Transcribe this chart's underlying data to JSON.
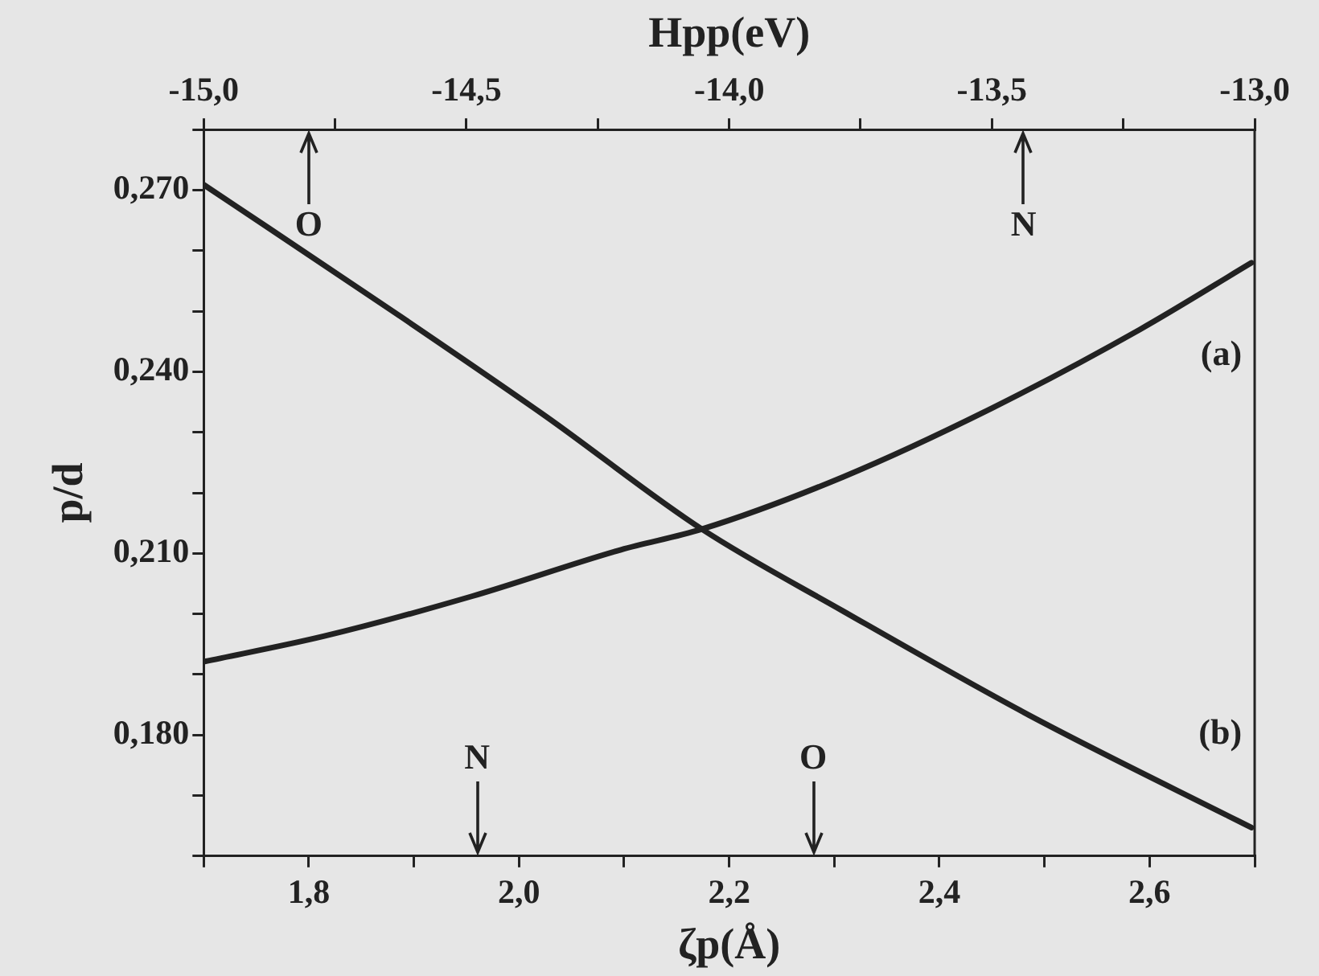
{
  "chart_data": {
    "type": "line",
    "xlabel": "ζp(Å)",
    "ylabel": "p/d",
    "x2label": "Hpp(eV)",
    "xlim": [
      1.7,
      2.7
    ],
    "ylim": [
      0.16,
      0.28
    ],
    "x2lim": [
      -15.0,
      -13.0
    ],
    "xticks": [
      {
        "value": 1.7,
        "label": null
      },
      {
        "value": 1.8,
        "label": "1,8"
      },
      {
        "value": 1.9,
        "label": null
      },
      {
        "value": 2.0,
        "label": "2,0"
      },
      {
        "value": 2.1,
        "label": null
      },
      {
        "value": 2.2,
        "label": "2,2"
      },
      {
        "value": 2.3,
        "label": null
      },
      {
        "value": 2.4,
        "label": "2,4"
      },
      {
        "value": 2.5,
        "label": null
      },
      {
        "value": 2.6,
        "label": "2,6"
      },
      {
        "value": 2.7,
        "label": null
      }
    ],
    "x2ticks": [
      {
        "value": -15.0,
        "label": "-15,0"
      },
      {
        "value": -14.75,
        "label": null
      },
      {
        "value": -14.5,
        "label": "-14,5"
      },
      {
        "value": -14.25,
        "label": null
      },
      {
        "value": -14.0,
        "label": "-14,0"
      },
      {
        "value": -13.75,
        "label": null
      },
      {
        "value": -13.5,
        "label": "-13,5"
      },
      {
        "value": -13.25,
        "label": null
      },
      {
        "value": -13.0,
        "label": "-13,0"
      }
    ],
    "yticks": [
      {
        "value": 0.16,
        "label": null
      },
      {
        "value": 0.17,
        "label": null
      },
      {
        "value": 0.18,
        "label": "0,180"
      },
      {
        "value": 0.19,
        "label": null
      },
      {
        "value": 0.2,
        "label": null
      },
      {
        "value": 0.21,
        "label": "0,210"
      },
      {
        "value": 0.22,
        "label": null
      },
      {
        "value": 0.23,
        "label": null
      },
      {
        "value": 0.24,
        "label": "0,240"
      },
      {
        "value": 0.25,
        "label": null
      },
      {
        "value": 0.26,
        "label": null
      },
      {
        "value": 0.27,
        "label": "0,270"
      },
      {
        "value": 0.28,
        "label": null
      }
    ],
    "series": [
      {
        "name": "(a)",
        "color": "#222222",
        "x": [
          1.7,
          1.814,
          1.955,
          2.097,
          2.174,
          2.308,
          2.449,
          2.591,
          2.697
        ],
        "values": [
          0.1921,
          0.1963,
          0.2029,
          0.2106,
          0.214,
          0.2226,
          0.2339,
          0.247,
          0.258
        ]
      },
      {
        "name": "(b)",
        "color": "#222222",
        "x": [
          1.7,
          1.885,
          2.025,
          2.174,
          2.308,
          2.485,
          2.697
        ],
        "values": [
          0.2709,
          0.2494,
          0.2327,
          0.214,
          0.2005,
          0.1833,
          0.1647
        ]
      }
    ],
    "ref_lines": [
      {
        "axis": "x2",
        "value": -14.8,
        "label": "O"
      },
      {
        "axis": "x2",
        "value": -13.44,
        "label": "N"
      },
      {
        "axis": "x",
        "value": 1.96,
        "label": "N"
      },
      {
        "axis": "x",
        "value": 2.28,
        "label": "O"
      }
    ],
    "grid": false,
    "legend": false,
    "marker": "none",
    "line_style": "solid"
  }
}
